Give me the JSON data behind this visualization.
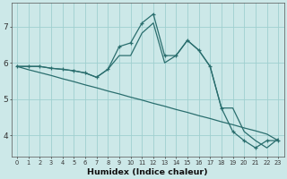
{
  "xlabel": "Humidex (Indice chaleur)",
  "x_values": [
    0,
    1,
    2,
    3,
    4,
    5,
    6,
    7,
    8,
    9,
    10,
    11,
    12,
    13,
    14,
    15,
    16,
    17,
    18,
    19,
    20,
    21,
    22,
    23
  ],
  "line_marked_y": [
    5.9,
    5.9,
    5.9,
    5.85,
    5.82,
    5.78,
    5.72,
    5.6,
    5.82,
    6.45,
    6.55,
    7.1,
    7.35,
    6.2,
    6.2,
    6.62,
    6.35,
    5.9,
    4.75,
    4.1,
    3.85,
    3.65,
    3.85,
    3.85
  ],
  "line_linear_y": [
    5.9,
    5.81,
    5.73,
    5.65,
    5.56,
    5.48,
    5.39,
    5.31,
    5.22,
    5.14,
    5.05,
    4.97,
    4.88,
    4.8,
    4.71,
    4.63,
    4.54,
    4.46,
    4.37,
    4.29,
    4.2,
    4.12,
    4.03,
    3.85
  ],
  "line_plain_y": [
    5.9,
    5.9,
    5.9,
    5.85,
    5.82,
    5.78,
    5.72,
    5.6,
    5.82,
    6.2,
    6.2,
    6.82,
    7.1,
    6.0,
    6.2,
    6.62,
    6.35,
    5.9,
    4.75,
    4.75,
    4.1,
    3.85,
    3.65,
    3.9
  ],
  "line_color": "#2a6e6e",
  "bg_color": "#cce8e8",
  "grid_color": "#9fcfcf",
  "ylim": [
    3.4,
    7.65
  ],
  "yticks": [
    4,
    5,
    6,
    7
  ],
  "xlim": [
    -0.5,
    23.5
  ]
}
